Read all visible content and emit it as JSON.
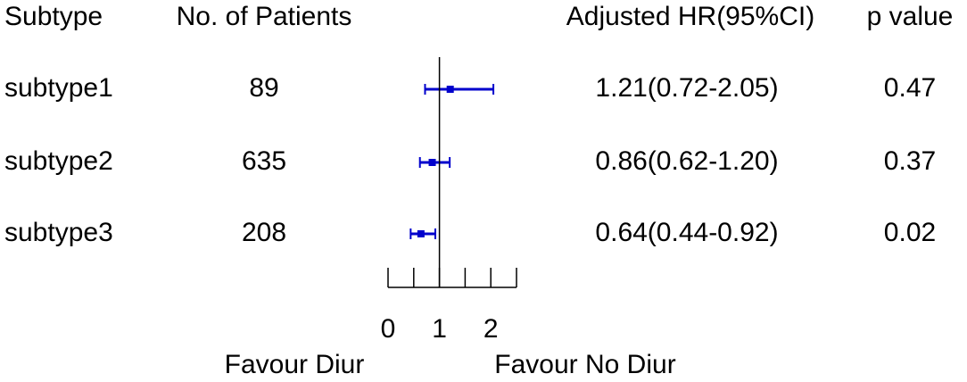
{
  "chart_data": {
    "type": "forest",
    "columns": [
      "Subtype",
      "No. of Patients",
      "Adjusted HR(95%CI)",
      "p value"
    ],
    "categories": [
      "subtype1",
      "subtype2",
      "subtype3"
    ],
    "patients": [
      89,
      635,
      208
    ],
    "values": [
      1.21,
      0.86,
      0.64
    ],
    "lower": [
      0.72,
      0.62,
      0.44
    ],
    "upper": [
      2.05,
      1.2,
      0.92
    ],
    "value_labels": [
      "1.21(0.72-2.05)",
      "0.86(0.62-1.20)",
      "0.64(0.44-0.92)"
    ],
    "p_values": [
      0.47,
      0.37,
      0.02
    ],
    "color": "#0000cc",
    "reference_line": 1,
    "xlim": [
      0,
      2.5
    ],
    "xticks": [
      0,
      {
        "value": 0.5,
        "label": null
      },
      1,
      {
        "value": 1.5,
        "label": null
      },
      2,
      {
        "value": 2.5,
        "label": null
      }
    ],
    "left_label": "Favour Diur",
    "right_label": "Favour No Diur"
  }
}
